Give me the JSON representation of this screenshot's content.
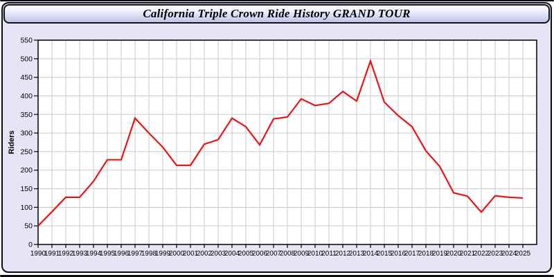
{
  "window": {
    "title": "California Triple Crown Ride History GRAND TOUR"
  },
  "colors": {
    "panel_bg": "#e5e5f6",
    "plot_bg": "#ffffff",
    "grid": "#c9c9c9",
    "axis": "#000000",
    "line": "#ee1111",
    "tick_text": "#000000"
  },
  "chart_data": {
    "type": "line",
    "title": "California Triple Crown Ride History GRAND TOUR",
    "xlabel": "",
    "ylabel": "Riders",
    "x": [
      1990,
      1991,
      1992,
      1993,
      1994,
      1995,
      1996,
      1997,
      1998,
      1999,
      2000,
      2001,
      2002,
      2003,
      2004,
      2005,
      2006,
      2007,
      2008,
      2009,
      2010,
      2011,
      2012,
      2013,
      2014,
      2015,
      2016,
      2017,
      2018,
      2019,
      2020,
      2021,
      2022,
      2023,
      2024,
      2025
    ],
    "series": [
      {
        "name": "Riders",
        "values": [
          50,
          88,
          127,
          127,
          170,
          228,
          228,
          340,
          300,
          262,
          213,
          213,
          270,
          282,
          340,
          317,
          268,
          338,
          343,
          392,
          374,
          380,
          412,
          386,
          494,
          383,
          347,
          317,
          252,
          210,
          139,
          130,
          87,
          131,
          127,
          125
        ]
      }
    ],
    "ylim": [
      0,
      550
    ],
    "ytick_step": 50,
    "xlim_extra_right_years": 1,
    "grid": "on",
    "legend": "none"
  }
}
